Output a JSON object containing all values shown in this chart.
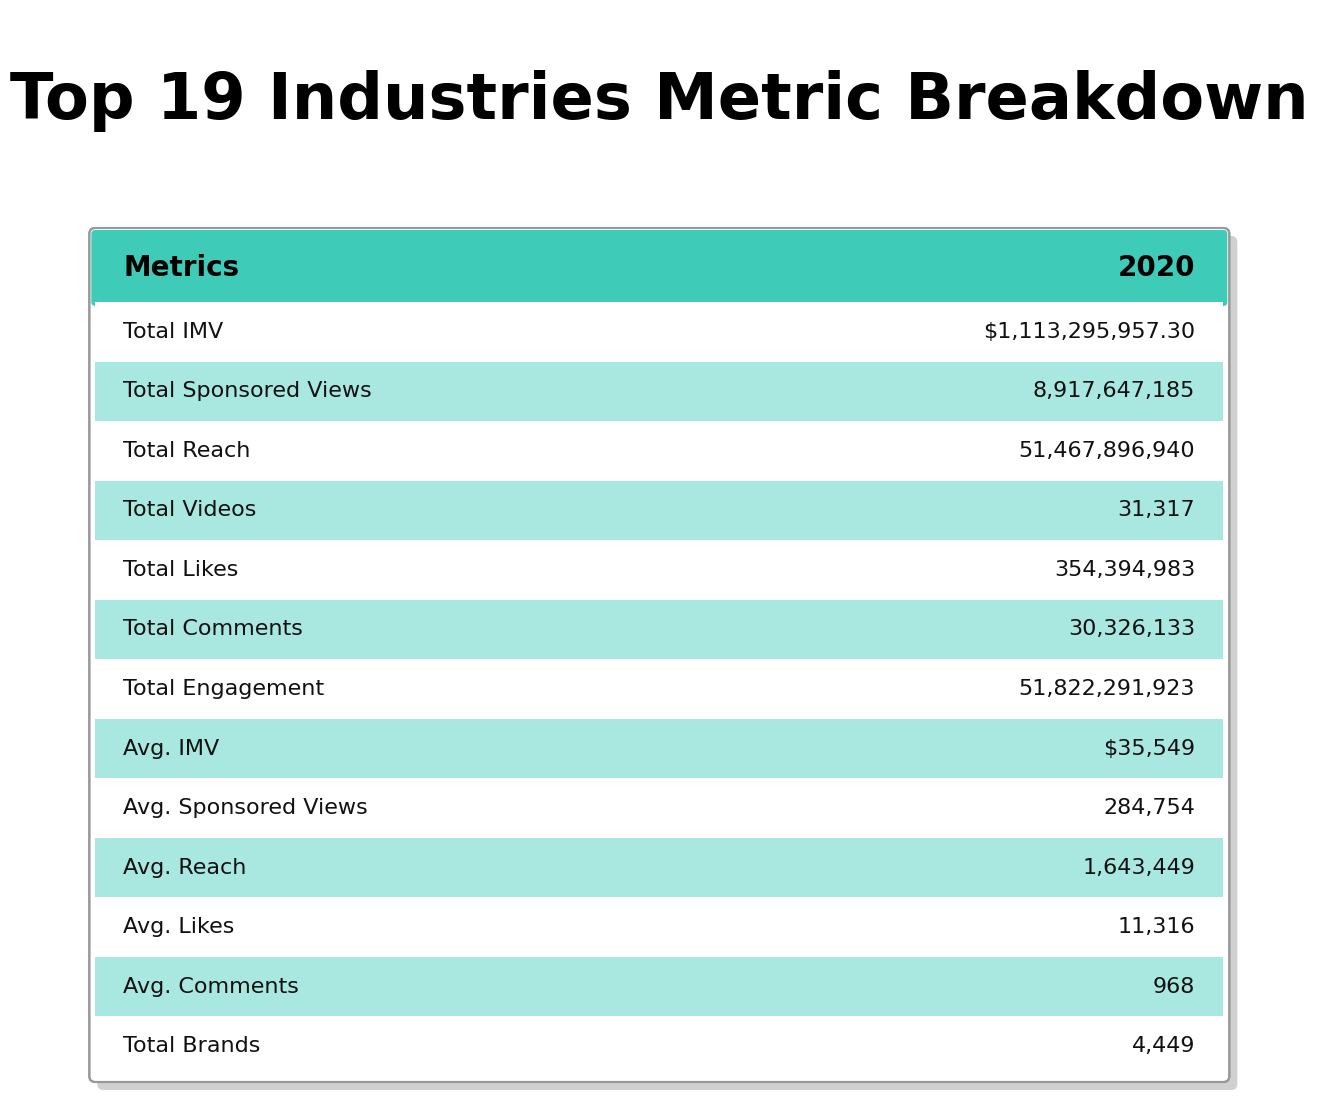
{
  "title": "Top 19 Industries Metric Breakdown",
  "header": [
    "Metrics",
    "2020"
  ],
  "rows": [
    [
      "Total IMV",
      "$1,113,295,957.30"
    ],
    [
      "Total Sponsored Views",
      "8,917,647,185"
    ],
    [
      "Total Reach",
      "51,467,896,940"
    ],
    [
      "Total Videos",
      "31,317"
    ],
    [
      "Total Likes",
      "354,394,983"
    ],
    [
      "Total Comments",
      "30,326,133"
    ],
    [
      "Total Engagement",
      "51,822,291,923"
    ],
    [
      "Avg. IMV",
      "$35,549"
    ],
    [
      "Avg. Sponsored Views",
      "284,754"
    ],
    [
      "Avg. Reach",
      "1,643,449"
    ],
    [
      "Avg. Likes",
      "11,316"
    ],
    [
      "Avg. Comments",
      "968"
    ],
    [
      "Total Brands",
      "4,449"
    ]
  ],
  "header_bg": "#3ecbb7",
  "row_bg_white": "#ffffff",
  "row_bg_teal": "#a8e8e0",
  "title_color": "#000000",
  "header_text_color": "#000000",
  "row_text_color": "#111111",
  "table_border_color": "#999999",
  "table_shadow_color": "#d0d0d0",
  "background_color": "#ffffff",
  "teal_row_indices": [
    1,
    3,
    5,
    7,
    9,
    11
  ]
}
